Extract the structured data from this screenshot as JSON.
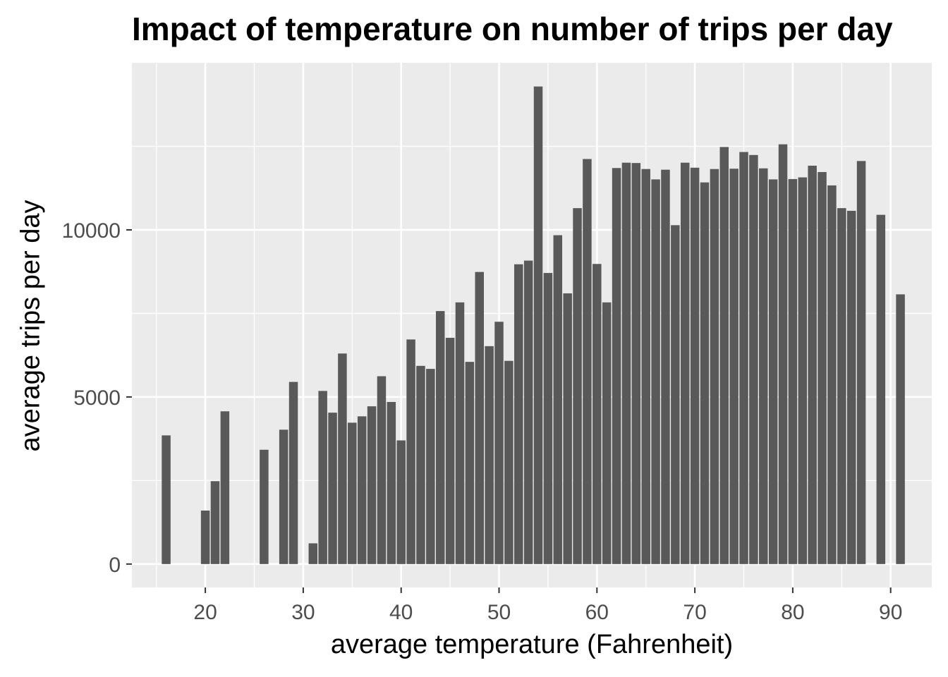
{
  "chart_data": {
    "type": "bar",
    "title": "Impact of temperature on number of trips per day",
    "xlabel": "average temperature (Fahrenheit)",
    "ylabel": "average trips per day",
    "xlim": [
      12.5,
      94.2
    ],
    "ylim": [
      -700,
      15000
    ],
    "x_ticks": [
      20,
      30,
      40,
      50,
      60,
      70,
      80,
      90
    ],
    "y_ticks": [
      0,
      5000,
      10000
    ],
    "grid": true,
    "bar_color": "#595959",
    "panel_color": "#ebebeb",
    "x": [
      16,
      20,
      21,
      22,
      26,
      28,
      29,
      31,
      32,
      33,
      34,
      35,
      36,
      37,
      38,
      39,
      40,
      41,
      42,
      43,
      44,
      45,
      46,
      47,
      48,
      49,
      50,
      51,
      52,
      53,
      54,
      55,
      56,
      57,
      58,
      59,
      60,
      61,
      62,
      63,
      64,
      65,
      66,
      67,
      68,
      69,
      70,
      71,
      72,
      73,
      74,
      75,
      76,
      77,
      78,
      79,
      80,
      81,
      82,
      83,
      84,
      85,
      86,
      87,
      89,
      91
    ],
    "values": [
      3850,
      1600,
      2480,
      4570,
      3420,
      4020,
      5450,
      620,
      5180,
      4530,
      6300,
      4230,
      4420,
      4720,
      5620,
      4850,
      3700,
      6720,
      5930,
      5840,
      7570,
      6770,
      7830,
      6050,
      8740,
      6520,
      7250,
      6080,
      8970,
      9080,
      14290,
      8710,
      9840,
      8100,
      10650,
      12120,
      8980,
      7830,
      11850,
      12010,
      12000,
      11820,
      11510,
      11800,
      10140,
      12010,
      11860,
      11420,
      11820,
      12480,
      11830,
      12330,
      12240,
      11840,
      11510,
      12560,
      11520,
      11570,
      11920,
      11730,
      11330,
      10650,
      10570,
      12060,
      10450,
      8070
    ]
  }
}
